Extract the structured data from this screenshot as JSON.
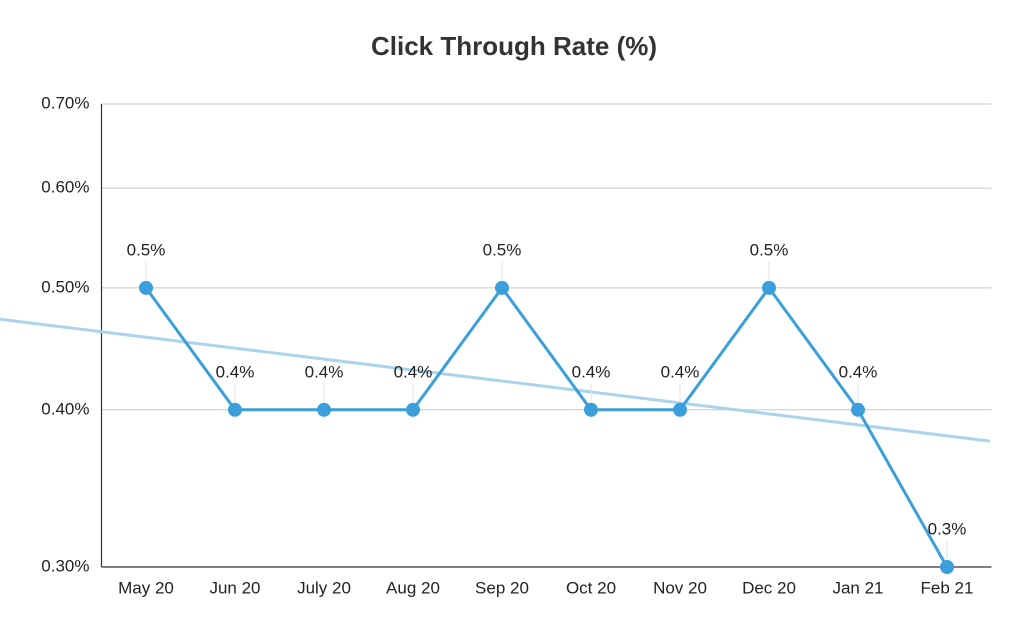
{
  "chart_data": {
    "type": "line",
    "title": "Click Through Rate (%)",
    "categories": [
      "May 20",
      "Jun 20",
      "July 20",
      "Aug 20",
      "Sep 20",
      "Oct 20",
      "Nov 20",
      "Dec 20",
      "Jan 21",
      "Feb 21"
    ],
    "series": [
      {
        "color": "#3a9fdb",
        "values": [
          0.5,
          0.4,
          0.4,
          0.4,
          0.5,
          0.4,
          0.4,
          0.5,
          0.4,
          0.3
        ],
        "value_labels": [
          "0.5%",
          "0.4%",
          "0.4%",
          "0.4%",
          "0.5%",
          "0.4%",
          "0.4%",
          "0.5%",
          "0.4%",
          "0.3%"
        ]
      }
    ],
    "ylim": [
      0.3,
      0.7
    ],
    "log_y": true,
    "yticks": [
      {
        "value": 0.3,
        "label": "0.30%"
      },
      {
        "value": 0.4,
        "label": "0.40%"
      },
      {
        "value": 0.5,
        "label": "0.50%"
      },
      {
        "value": 0.6,
        "label": "0.60%"
      },
      {
        "value": 0.7,
        "label": "0.70%"
      }
    ],
    "grid": true,
    "trendline": "linear",
    "trendline_color": "#a9d4ec"
  }
}
